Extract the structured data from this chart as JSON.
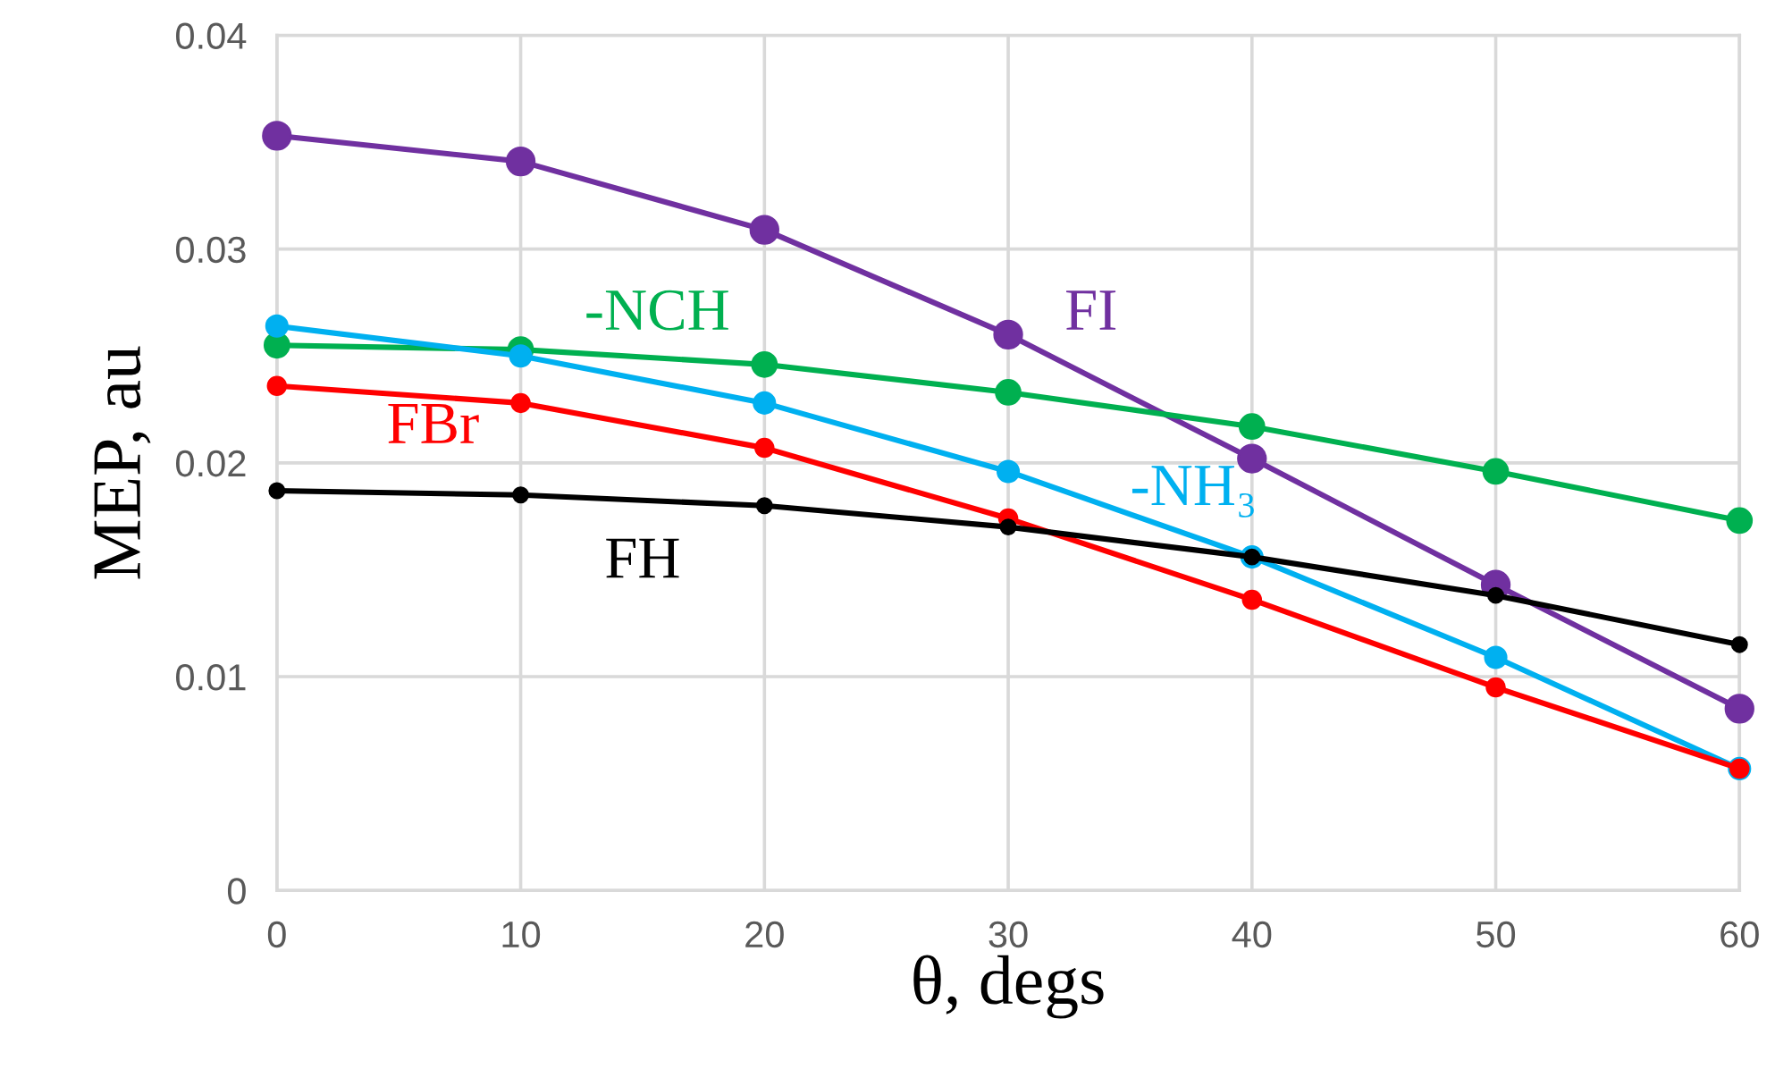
{
  "chart_data": {
    "type": "line",
    "xlabel": "θ, degs",
    "ylabel": "MEP, au",
    "x": [
      0,
      10,
      20,
      30,
      40,
      50,
      60
    ],
    "series": [
      {
        "name": "FI",
        "color": "#7030a0",
        "values": [
          0.0353,
          0.0341,
          0.0309,
          0.026,
          0.0202,
          0.0143,
          0.0085
        ]
      },
      {
        "name": "-NCH",
        "color": "#00b050",
        "values": [
          0.0255,
          0.0253,
          0.0246,
          0.0233,
          0.0217,
          0.0196,
          0.0173
        ]
      },
      {
        "name": "-NH₃",
        "color": "#00b0f0",
        "values": [
          0.0264,
          0.025,
          0.0228,
          0.0196,
          0.0156,
          0.0109,
          0.0057
        ]
      },
      {
        "name": "FBr",
        "color": "#ff0000",
        "values": [
          0.0236,
          0.0228,
          0.0207,
          0.0174,
          0.0136,
          0.0095,
          0.0057
        ]
      },
      {
        "name": "FH",
        "color": "#000000",
        "values": [
          0.0187,
          0.0185,
          0.018,
          0.017,
          0.0156,
          0.0138,
          0.0115
        ]
      }
    ],
    "xlim": [
      0,
      60
    ],
    "xticks": [
      0,
      10,
      20,
      30,
      40,
      50,
      60
    ],
    "ylim": [
      0,
      0.04
    ],
    "yticks": [
      {
        "value": 0,
        "label": "0"
      },
      {
        "value": 0.01,
        "label": "0.01"
      },
      {
        "value": 0.02,
        "label": "0.02"
      },
      {
        "value": 0.03,
        "label": "0.03"
      },
      {
        "value": 0.04,
        "label": "0.04"
      }
    ],
    "grid": true,
    "legend": false,
    "marker": "circle",
    "line_style": "solid"
  }
}
